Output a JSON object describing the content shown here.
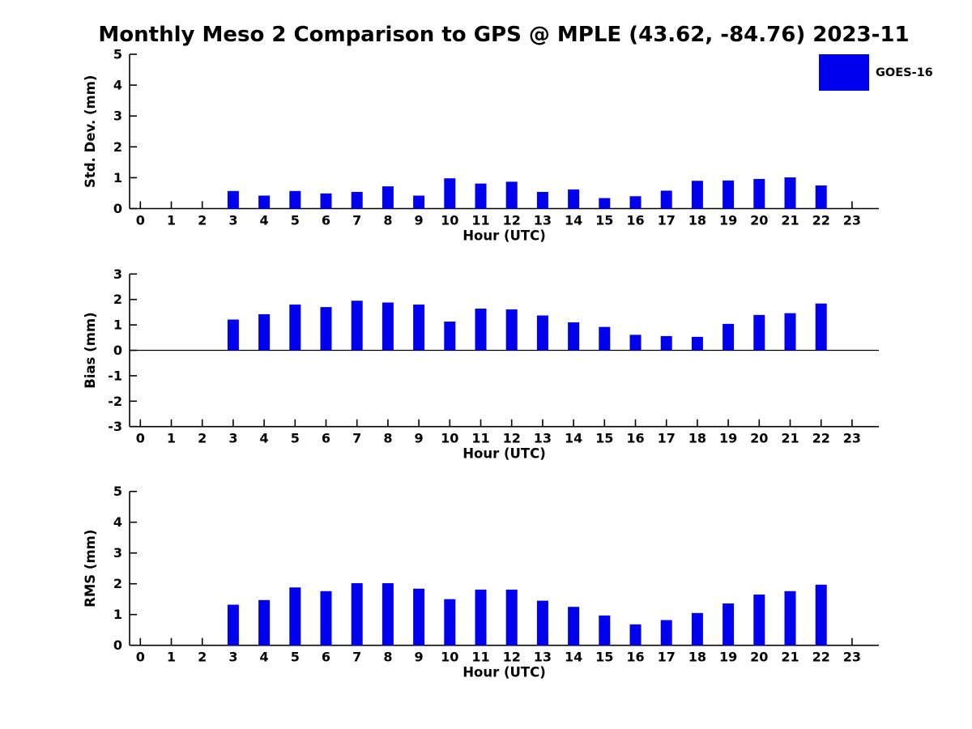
{
  "title": "Monthly Meso 2 Comparison to GPS @ MPLE (43.62, -84.76) 2023-11",
  "legend": {
    "label": "GOES-16",
    "color": "#0000ee",
    "position": "upper-right"
  },
  "colors": {
    "bar": "#0000ee",
    "axis": "#000000",
    "text": "#000000",
    "background": "#ffffff"
  },
  "chart_data": [
    {
      "type": "bar",
      "panel": "std-dev",
      "ylabel": "Std. Dev. (mm)",
      "xlabel": "Hour (UTC)",
      "ylim": [
        0,
        5
      ],
      "yticks": [
        0,
        1,
        2,
        3,
        4,
        5
      ],
      "grid": false,
      "zero_line": false,
      "categories": [
        0,
        1,
        2,
        3,
        4,
        5,
        6,
        7,
        8,
        9,
        10,
        11,
        12,
        13,
        14,
        15,
        16,
        17,
        18,
        19,
        20,
        21,
        22,
        23
      ],
      "series": [
        {
          "name": "GOES-16",
          "color": "#0000ee",
          "values": [
            null,
            null,
            null,
            0.57,
            0.42,
            0.57,
            0.49,
            0.54,
            0.72,
            0.42,
            0.98,
            0.81,
            0.87,
            0.54,
            0.62,
            0.34,
            0.4,
            0.58,
            0.9,
            0.91,
            0.96,
            1.01,
            0.75,
            null
          ]
        }
      ]
    },
    {
      "type": "bar",
      "panel": "bias",
      "ylabel": "Bias (mm)",
      "xlabel": "Hour (UTC)",
      "ylim": [
        -3,
        3
      ],
      "yticks": [
        -3,
        -2,
        -1,
        0,
        1,
        2,
        3
      ],
      "grid": false,
      "zero_line": true,
      "categories": [
        0,
        1,
        2,
        3,
        4,
        5,
        6,
        7,
        8,
        9,
        10,
        11,
        12,
        13,
        14,
        15,
        16,
        17,
        18,
        19,
        20,
        21,
        22,
        23
      ],
      "series": [
        {
          "name": "GOES-16",
          "color": "#0000ee",
          "values": [
            null,
            null,
            null,
            1.21,
            1.42,
            1.8,
            1.7,
            1.95,
            1.88,
            1.8,
            1.13,
            1.64,
            1.61,
            1.37,
            1.1,
            0.92,
            0.61,
            0.56,
            0.53,
            1.04,
            1.39,
            1.46,
            1.84,
            null
          ]
        }
      ]
    },
    {
      "type": "bar",
      "panel": "rms",
      "ylabel": "RMS (mm)",
      "xlabel": "Hour (UTC)",
      "ylim": [
        0,
        5
      ],
      "yticks": [
        0,
        1,
        2,
        3,
        4,
        5
      ],
      "grid": false,
      "zero_line": false,
      "categories": [
        0,
        1,
        2,
        3,
        4,
        5,
        6,
        7,
        8,
        9,
        10,
        11,
        12,
        13,
        14,
        15,
        16,
        17,
        18,
        19,
        20,
        21,
        22,
        23
      ],
      "series": [
        {
          "name": "GOES-16",
          "color": "#0000ee",
          "values": [
            null,
            null,
            null,
            1.32,
            1.47,
            1.88,
            1.76,
            2.02,
            2.02,
            1.84,
            1.5,
            1.81,
            1.81,
            1.45,
            1.25,
            0.97,
            0.68,
            0.82,
            1.05,
            1.36,
            1.65,
            1.76,
            1.97,
            null
          ]
        }
      ]
    }
  ]
}
